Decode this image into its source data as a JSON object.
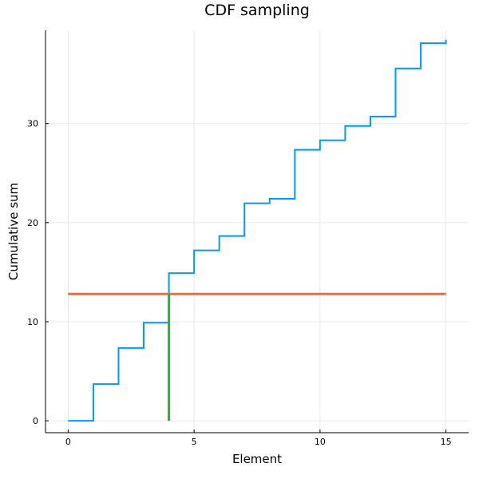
{
  "chart_data": {
    "type": "line",
    "title": "CDF sampling",
    "xlabel": "Element",
    "ylabel": "Cumulative sum",
    "xlim": [
      -0.9,
      15.9
    ],
    "ylim": [
      -1.2,
      39.4
    ],
    "xticks": [
      0,
      5,
      10,
      15
    ],
    "yticks": [
      0,
      10,
      20,
      30
    ],
    "grid": true,
    "legend": "none",
    "series": [
      {
        "kind": "step",
        "color": "#009af9",
        "x": [
          0,
          1,
          2,
          3,
          4,
          5,
          6,
          7,
          8,
          9,
          10,
          11,
          12,
          13,
          14,
          15
        ],
        "y": [
          0,
          3.7,
          7.35,
          9.9,
          14.9,
          17.2,
          18.65,
          21.95,
          22.4,
          27.35,
          28.3,
          29.75,
          30.7,
          35.55,
          38.1,
          38.45
        ]
      },
      {
        "kind": "hline",
        "color": "#e26f46",
        "x": [
          0,
          15
        ],
        "y": [
          12.8,
          12.8
        ]
      },
      {
        "kind": "vline",
        "color": "#3da44d",
        "x": [
          4,
          4
        ],
        "y": [
          0,
          12.8
        ]
      }
    ]
  }
}
